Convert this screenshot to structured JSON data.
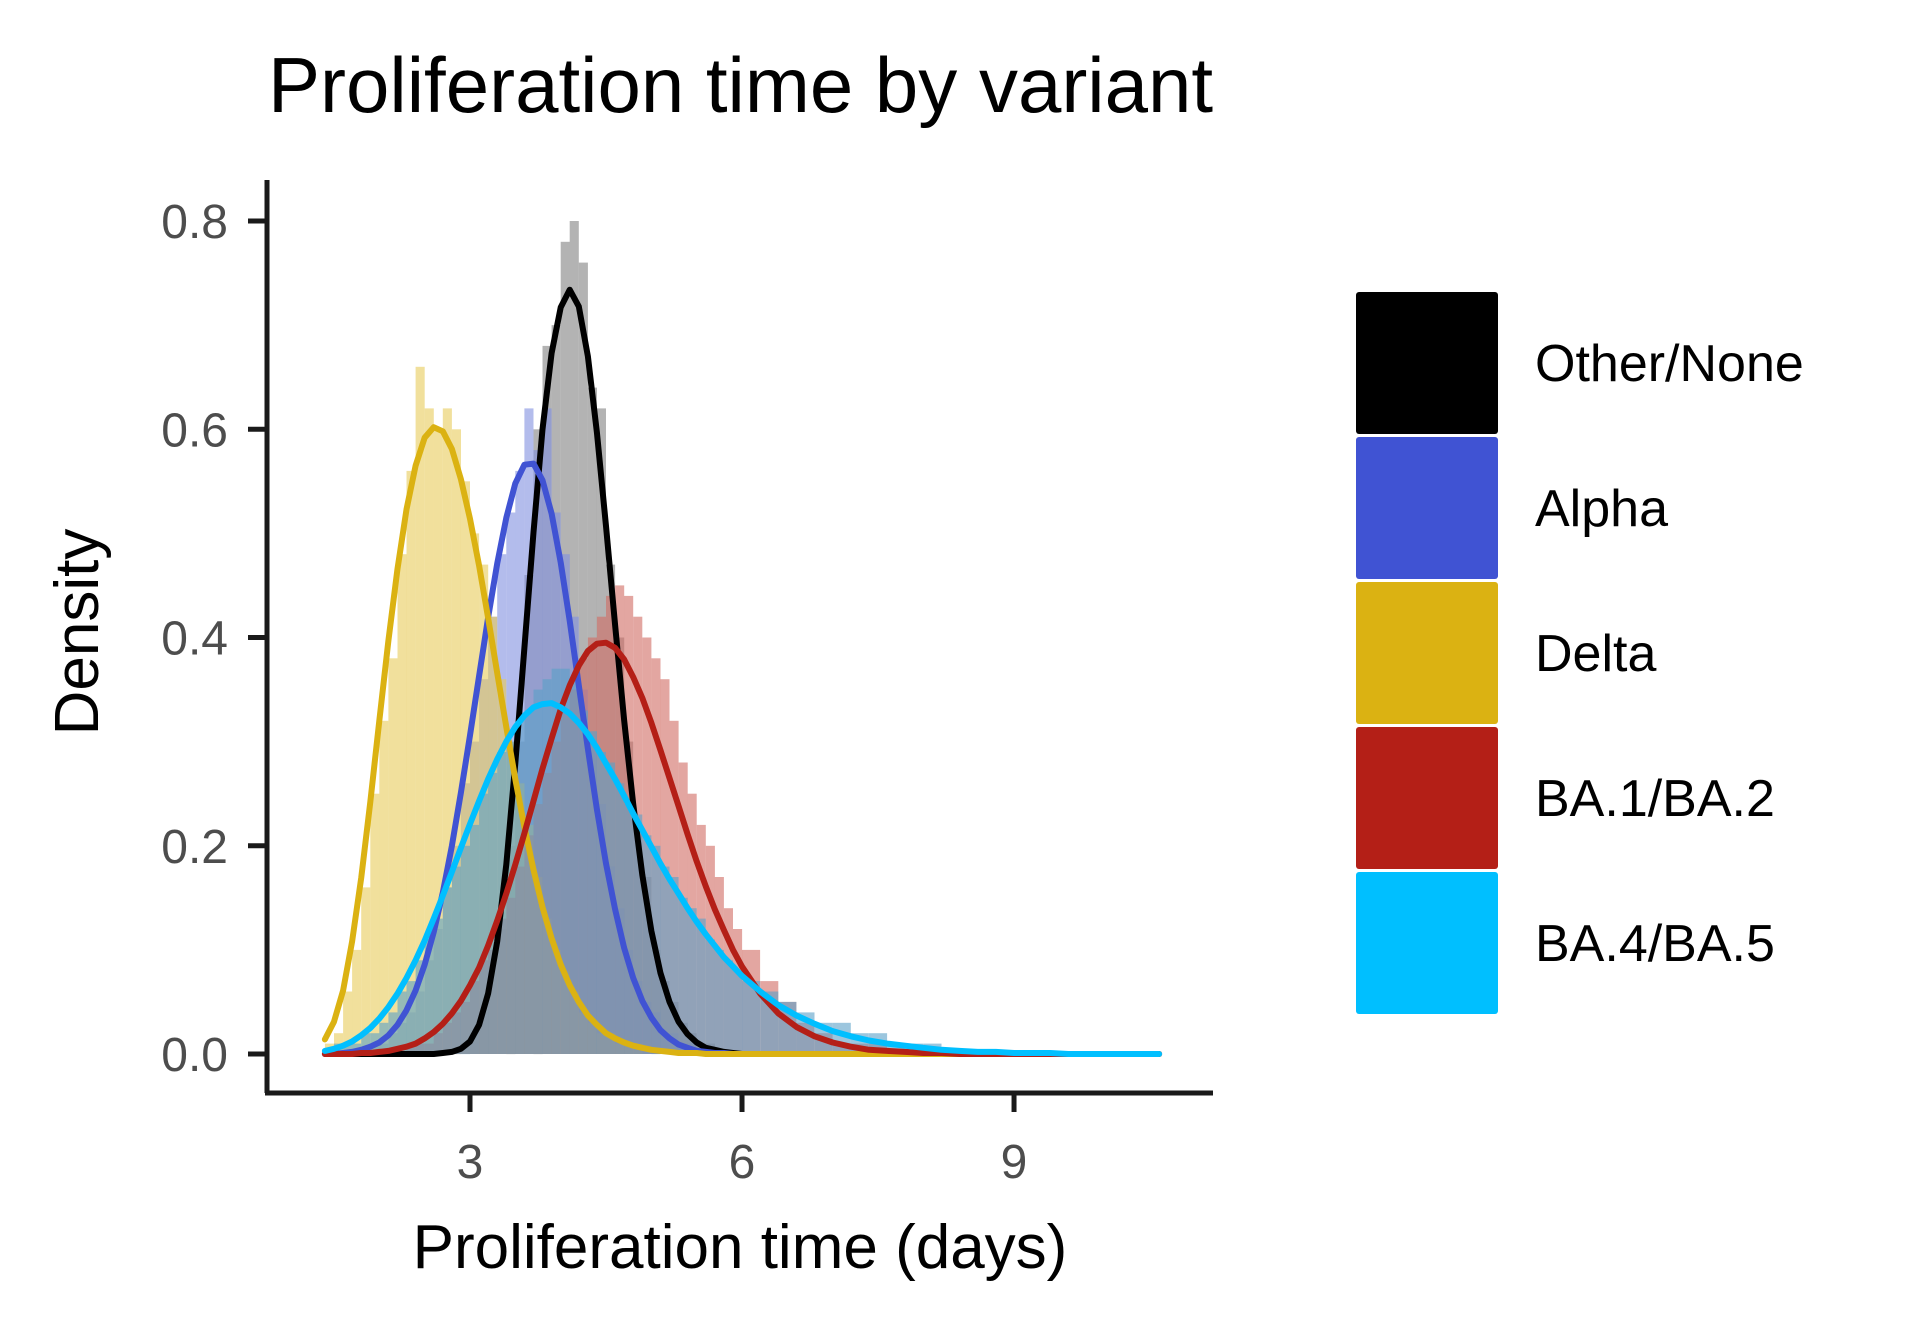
{
  "chart_data": {
    "type": "histogram+density",
    "title": "Proliferation time by variant",
    "xlabel": "Proliferation time (days)",
    "ylabel": "Density",
    "xlim": [
      1.2,
      11.0
    ],
    "ylim": [
      -0.04,
      0.84
    ],
    "x_ticks": [
      3,
      6,
      9
    ],
    "y_ticks": [
      "0.0",
      "0.2",
      "0.4",
      "0.6",
      "0.8"
    ],
    "legend_position": "right",
    "grid": false,
    "x_grid": [
      1.4,
      1.5,
      1.6,
      1.7,
      1.8,
      1.9,
      2.0,
      2.1,
      2.2,
      2.3,
      2.4,
      2.5,
      2.6,
      2.7,
      2.8,
      2.9,
      3.0,
      3.1,
      3.2,
      3.3,
      3.4,
      3.5,
      3.6,
      3.7,
      3.8,
      3.9,
      4.0,
      4.1,
      4.2,
      4.3,
      4.4,
      4.5,
      4.6,
      4.7,
      4.8,
      4.9,
      5.0,
      5.1,
      5.2,
      5.3,
      5.4,
      5.5,
      5.6,
      5.7,
      5.8,
      5.9,
      6.0,
      6.2,
      6.4,
      6.6,
      6.8,
      7.0,
      7.2,
      7.4,
      7.6,
      7.8,
      8.0,
      8.2,
      8.4,
      8.6,
      8.8,
      9.0,
      9.2,
      9.4,
      9.6,
      9.8,
      10.0,
      10.2,
      10.4,
      10.6
    ],
    "series": [
      {
        "name": "Other/None",
        "color": "#000000",
        "hist_color": "#808080",
        "density": [
          0.0,
          0.0,
          0.0,
          0.0,
          0.0,
          0.0,
          0.0,
          0.0,
          0.0,
          0.0,
          0.0,
          0.0,
          0.0,
          0.001,
          0.002,
          0.005,
          0.012,
          0.028,
          0.058,
          0.108,
          0.182,
          0.279,
          0.39,
          0.501,
          0.6,
          0.673,
          0.717,
          0.734,
          0.718,
          0.67,
          0.597,
          0.507,
          0.412,
          0.321,
          0.24,
          0.172,
          0.118,
          0.078,
          0.05,
          0.031,
          0.019,
          0.011,
          0.006,
          0.004,
          0.002,
          0.001,
          0.0,
          0.0,
          0.0,
          0.0,
          0.0,
          0.0,
          0.0,
          0.0,
          0.0,
          0.0,
          0.0,
          0.0,
          0.0,
          0.0,
          0.0,
          0.0,
          0.0,
          0.0,
          0.0,
          0.0,
          0.0,
          0.0,
          0.0,
          0.0
        ],
        "hist_values": [
          0.0,
          0.0,
          0.0,
          0.0,
          0.0,
          0.0,
          0.0,
          0.0,
          0.0,
          0.0,
          0.0,
          0.0,
          0.0,
          0.0,
          0.0,
          0.01,
          0.02,
          0.04,
          0.08,
          0.12,
          0.2,
          0.3,
          0.46,
          0.6,
          0.68,
          0.7,
          0.78,
          0.8,
          0.76,
          0.64,
          0.62,
          0.47,
          0.4,
          0.3,
          0.22,
          0.17,
          0.1,
          0.07,
          0.05,
          0.03,
          0.02,
          0.01,
          0.01,
          0.0,
          0.0,
          0.0,
          0.0,
          0.0,
          0.0,
          0.0,
          0.0,
          0.0,
          0.0,
          0.0,
          0.0,
          0.0,
          0.0,
          0.0,
          0.0,
          0.0,
          0.0,
          0.0,
          0.0,
          0.0,
          0.0,
          0.0,
          0.0,
          0.0,
          0.0,
          0.0
        ]
      },
      {
        "name": "Alpha",
        "color": "#4053d3",
        "hist_color": "#8090e0",
        "density": [
          0.0,
          0.0,
          0.001,
          0.002,
          0.004,
          0.007,
          0.011,
          0.018,
          0.028,
          0.042,
          0.061,
          0.086,
          0.117,
          0.155,
          0.2,
          0.251,
          0.306,
          0.363,
          0.419,
          0.471,
          0.515,
          0.548,
          0.566,
          0.567,
          0.551,
          0.519,
          0.472,
          0.416,
          0.354,
          0.293,
          0.235,
          0.183,
          0.139,
          0.102,
          0.073,
          0.051,
          0.035,
          0.023,
          0.015,
          0.009,
          0.006,
          0.003,
          0.002,
          0.001,
          0.001,
          0.0,
          0.0,
          0.0,
          0.0,
          0.0,
          0.0,
          0.0,
          0.0,
          0.0,
          0.0,
          0.0,
          0.0,
          0.0,
          0.0,
          0.0,
          0.0,
          0.0,
          0.0,
          0.0,
          0.0,
          0.0,
          0.0,
          0.0,
          0.0,
          0.0
        ],
        "hist_values": [
          0.0,
          0.0,
          0.0,
          0.0,
          0.0,
          0.01,
          0.01,
          0.02,
          0.03,
          0.04,
          0.06,
          0.09,
          0.12,
          0.16,
          0.2,
          0.26,
          0.3,
          0.36,
          0.42,
          0.48,
          0.52,
          0.56,
          0.62,
          0.58,
          0.62,
          0.52,
          0.48,
          0.42,
          0.35,
          0.3,
          0.24,
          0.18,
          0.14,
          0.1,
          0.07,
          0.05,
          0.04,
          0.02,
          0.02,
          0.01,
          0.01,
          0.0,
          0.0,
          0.0,
          0.0,
          0.0,
          0.0,
          0.0,
          0.0,
          0.0,
          0.0,
          0.0,
          0.0,
          0.0,
          0.0,
          0.0,
          0.0,
          0.0,
          0.0,
          0.0,
          0.0,
          0.0,
          0.0,
          0.0,
          0.0,
          0.0,
          0.0,
          0.0,
          0.0,
          0.0
        ]
      },
      {
        "name": "Delta",
        "color": "#dbb212",
        "hist_color": "#e8cc5a",
        "density": [
          0.014,
          0.031,
          0.061,
          0.108,
          0.169,
          0.242,
          0.32,
          0.397,
          0.466,
          0.523,
          0.565,
          0.592,
          0.602,
          0.598,
          0.581,
          0.552,
          0.514,
          0.469,
          0.419,
          0.366,
          0.314,
          0.264,
          0.218,
          0.177,
          0.141,
          0.111,
          0.086,
          0.066,
          0.05,
          0.037,
          0.028,
          0.02,
          0.015,
          0.011,
          0.008,
          0.006,
          0.004,
          0.003,
          0.002,
          0.001,
          0.001,
          0.001,
          0.0,
          0.0,
          0.0,
          0.0,
          0.0,
          0.0,
          0.0,
          0.0,
          0.0,
          0.0,
          0.0,
          0.0,
          0.0,
          0.0,
          0.0,
          0.0,
          0.0,
          0.0,
          0.0,
          0.0,
          0.0,
          0.0,
          0.0,
          0.0,
          0.0,
          0.0,
          0.0,
          0.0
        ],
        "hist_values": [
          0.01,
          0.02,
          0.06,
          0.1,
          0.16,
          0.25,
          0.32,
          0.38,
          0.48,
          0.56,
          0.66,
          0.62,
          0.6,
          0.62,
          0.6,
          0.55,
          0.5,
          0.47,
          0.42,
          0.36,
          0.3,
          0.26,
          0.22,
          0.17,
          0.13,
          0.1,
          0.08,
          0.06,
          0.04,
          0.03,
          0.02,
          0.02,
          0.01,
          0.01,
          0.01,
          0.0,
          0.0,
          0.0,
          0.0,
          0.0,
          0.0,
          0.0,
          0.0,
          0.0,
          0.0,
          0.0,
          0.0,
          0.0,
          0.0,
          0.0,
          0.0,
          0.0,
          0.0,
          0.0,
          0.0,
          0.0,
          0.0,
          0.0,
          0.0,
          0.0,
          0.0,
          0.0,
          0.0,
          0.0,
          0.0,
          0.0,
          0.0,
          0.0,
          0.0,
          0.0
        ]
      },
      {
        "name": "BA.1/BA.2",
        "color": "#b41f17",
        "hist_color": "#d06a62",
        "density": [
          0.0,
          0.0,
          0.0,
          0.0,
          0.001,
          0.001,
          0.002,
          0.003,
          0.005,
          0.007,
          0.01,
          0.015,
          0.021,
          0.029,
          0.039,
          0.051,
          0.066,
          0.083,
          0.104,
          0.128,
          0.154,
          0.182,
          0.212,
          0.243,
          0.274,
          0.303,
          0.331,
          0.354,
          0.373,
          0.387,
          0.394,
          0.395,
          0.39,
          0.379,
          0.362,
          0.342,
          0.318,
          0.292,
          0.265,
          0.238,
          0.211,
          0.185,
          0.161,
          0.139,
          0.119,
          0.1,
          0.084,
          0.058,
          0.039,
          0.026,
          0.017,
          0.011,
          0.007,
          0.004,
          0.003,
          0.002,
          0.001,
          0.001,
          0.0,
          0.0,
          0.0,
          0.0,
          0.0,
          0.0,
          0.0,
          0.0,
          0.0,
          0.0,
          0.0,
          0.0
        ],
        "hist_values": [
          0.0,
          0.0,
          0.0,
          0.0,
          0.0,
          0.0,
          0.0,
          0.0,
          0.0,
          0.01,
          0.01,
          0.01,
          0.02,
          0.03,
          0.04,
          0.05,
          0.07,
          0.09,
          0.1,
          0.13,
          0.15,
          0.18,
          0.21,
          0.24,
          0.27,
          0.3,
          0.33,
          0.35,
          0.38,
          0.4,
          0.42,
          0.44,
          0.45,
          0.44,
          0.42,
          0.4,
          0.38,
          0.36,
          0.32,
          0.28,
          0.25,
          0.22,
          0.2,
          0.17,
          0.14,
          0.12,
          0.1,
          0.07,
          0.05,
          0.03,
          0.02,
          0.01,
          0.01,
          0.01,
          0.0,
          0.0,
          0.0,
          0.0,
          0.0,
          0.0,
          0.0,
          0.0,
          0.0,
          0.0,
          0.0,
          0.0,
          0.0,
          0.0,
          0.0,
          0.0
        ]
      },
      {
        "name": "BA.4/BA.5",
        "color": "#00bfff",
        "hist_color": "#5aa0c8",
        "density": [
          0.003,
          0.005,
          0.008,
          0.012,
          0.018,
          0.025,
          0.034,
          0.045,
          0.058,
          0.073,
          0.09,
          0.109,
          0.13,
          0.152,
          0.175,
          0.198,
          0.221,
          0.243,
          0.264,
          0.283,
          0.3,
          0.314,
          0.325,
          0.333,
          0.336,
          0.337,
          0.333,
          0.327,
          0.318,
          0.307,
          0.294,
          0.279,
          0.264,
          0.248,
          0.231,
          0.215,
          0.199,
          0.183,
          0.168,
          0.154,
          0.14,
          0.127,
          0.115,
          0.104,
          0.093,
          0.084,
          0.075,
          0.06,
          0.047,
          0.037,
          0.029,
          0.022,
          0.017,
          0.013,
          0.01,
          0.008,
          0.006,
          0.004,
          0.003,
          0.002,
          0.002,
          0.001,
          0.001,
          0.001,
          0.0,
          0.0,
          0.0,
          0.0,
          0.0,
          0.0
        ],
        "hist_values": [
          0.0,
          0.01,
          0.01,
          0.01,
          0.02,
          0.02,
          0.03,
          0.04,
          0.06,
          0.07,
          0.09,
          0.11,
          0.13,
          0.16,
          0.18,
          0.2,
          0.22,
          0.25,
          0.27,
          0.29,
          0.3,
          0.32,
          0.33,
          0.35,
          0.36,
          0.37,
          0.37,
          0.36,
          0.33,
          0.31,
          0.29,
          0.28,
          0.26,
          0.24,
          0.23,
          0.21,
          0.2,
          0.18,
          0.17,
          0.15,
          0.14,
          0.13,
          0.11,
          0.1,
          0.09,
          0.08,
          0.07,
          0.06,
          0.05,
          0.04,
          0.03,
          0.03,
          0.02,
          0.02,
          0.01,
          0.01,
          0.01,
          0.0,
          0.0,
          0.0,
          0.0,
          0.0,
          0.0,
          0.0,
          0.0,
          0.0,
          0.0,
          0.0,
          0.0,
          0.0
        ]
      }
    ]
  }
}
